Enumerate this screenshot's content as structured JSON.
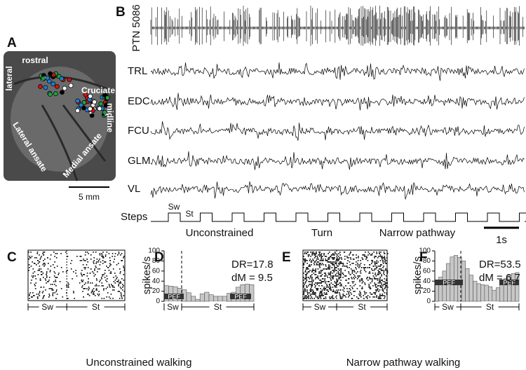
{
  "panel_a": {
    "label": "A",
    "lateral": "lateral",
    "rostral": "rostral",
    "cruciate": "Cruciate",
    "midline": "midline",
    "lateral_ansate": "Lateral ansate",
    "medial_ansate": "Medial ansate",
    "scale_bar": "5 mm"
  },
  "panel_b": {
    "label": "B",
    "traces": [
      "PTN 5086",
      "TRL",
      "EDC",
      "FCU",
      "GLM",
      "VL",
      "Steps"
    ],
    "sw": "Sw",
    "st": "St",
    "segments": [
      "Unconstrained",
      "Turn",
      "Narrow pathway"
    ],
    "scale_bar": "1s"
  },
  "panel_c": {
    "label": "C",
    "phases": [
      "Sw",
      "St"
    ],
    "caption": "Unconstrained walking"
  },
  "panel_d": {
    "label": "D",
    "y_label": "spikes/s",
    "ylim": [
      0,
      100
    ],
    "yticks": [
      0,
      20,
      40,
      60,
      80,
      100
    ],
    "values": [
      31,
      30,
      29,
      26,
      23,
      17,
      10,
      4,
      15,
      18,
      13,
      10,
      10,
      10,
      16,
      18,
      28,
      33,
      34,
      33
    ],
    "dr": "DR=17.8",
    "dm": "dM = 9.5",
    "pef": [
      "PEF",
      "PEF"
    ],
    "phases": [
      "Sw",
      "St"
    ]
  },
  "panel_e": {
    "label": "E",
    "phases": [
      "Sw",
      "St"
    ],
    "caption": "Narrow pathway walking"
  },
  "panel_f": {
    "label": "F",
    "y_label": "spikes/s",
    "ylim": [
      0,
      100
    ],
    "yticks": [
      0,
      20,
      40,
      60,
      80,
      100
    ],
    "values": [
      40,
      48,
      60,
      75,
      88,
      91,
      87,
      80,
      65,
      52,
      40,
      35,
      33,
      32,
      29,
      22,
      27,
      36,
      45,
      52,
      55,
      57
    ],
    "dr": "DR=53.5",
    "dm": "dM = 6.7",
    "pef": [
      "PEF",
      "PEF"
    ],
    "phases": [
      "Sw",
      "St"
    ]
  }
}
